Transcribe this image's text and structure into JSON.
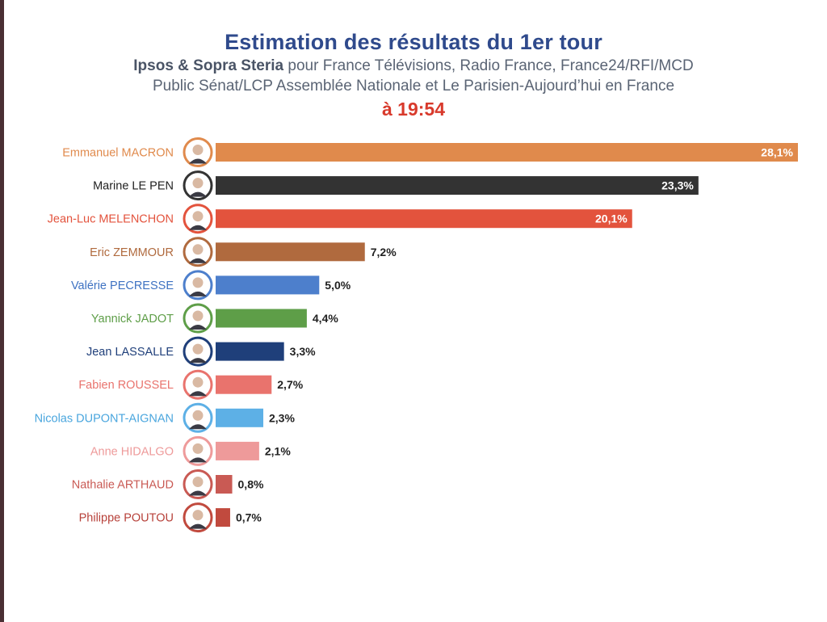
{
  "header": {
    "title": "Estimation des résultats du 1er tour",
    "subtitle_org": "Ipsos & Sopra Steria",
    "subtitle_rest_1": " pour France Télévisions, Radio France, France24/RFI/MCD",
    "subtitle_line_2": "Public Sénat/LCP Assemblée Nationale et Le Parisien-Aujourd’hui en France",
    "time": "à 19:54"
  },
  "chart_data": {
    "type": "bar",
    "orientation": "horizontal",
    "title": "Estimation des résultats du 1er tour",
    "categories": [
      "Emmanuel MACRON",
      "Marine LE PEN",
      "Jean-Luc MELENCHON",
      "Eric ZEMMOUR",
      "Valérie PECRESSE",
      "Yannick JADOT",
      "Jean LASSALLE",
      "Fabien ROUSSEL",
      "Nicolas DUPONT-AIGNAN",
      "Anne HIDALGO",
      "Nathalie ARTHAUD",
      "Philippe POUTOU"
    ],
    "values": [
      28.1,
      23.3,
      20.1,
      7.2,
      5.0,
      4.4,
      3.3,
      2.7,
      2.3,
      2.1,
      0.8,
      0.7
    ],
    "value_labels": [
      "28,1%",
      "23,3%",
      "20,1%",
      "7,2%",
      "5,0%",
      "4,4%",
      "3,3%",
      "2,7%",
      "2,3%",
      "2,1%",
      "0,8%",
      "0,7%"
    ],
    "colors": [
      "#e08a4c",
      "#333333",
      "#e3533d",
      "#b06a3e",
      "#4d7fcc",
      "#5e9e48",
      "#1f3f7a",
      "#e9736d",
      "#5db0e6",
      "#ee9a9a",
      "#c95a54",
      "#c14a3e"
    ],
    "label_colors": [
      "#e08a4c",
      "#222222",
      "#e3533d",
      "#b06a3e",
      "#3e72c2",
      "#5e9e48",
      "#1f3f7a",
      "#e9736d",
      "#4aa6de",
      "#ee9a9a",
      "#c95a54",
      "#b7413a"
    ],
    "value_label_position": [
      "inside",
      "inside",
      "inside",
      "outside",
      "outside",
      "outside",
      "outside",
      "outside",
      "outside",
      "outside",
      "outside",
      "outside"
    ],
    "xlim": [
      0,
      28.1
    ],
    "grid": false,
    "legend": "none"
  }
}
